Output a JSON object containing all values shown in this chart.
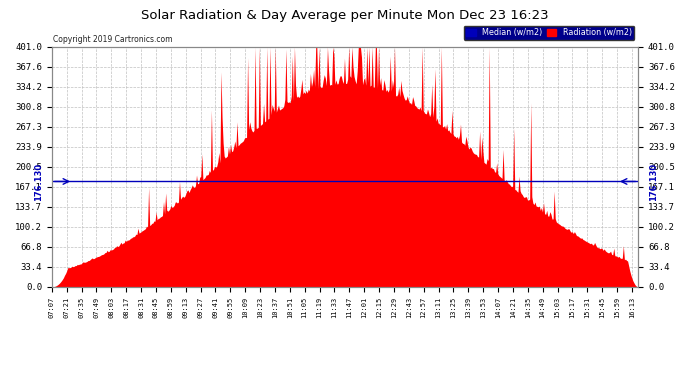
{
  "title": "Solar Radiation & Day Average per Minute Mon Dec 23 16:23",
  "copyright": "Copyright 2019 Cartronics.com",
  "median_value": 176.13,
  "median_label": "176.130",
  "y_ticks": [
    0.0,
    33.4,
    66.8,
    100.2,
    133.7,
    167.1,
    200.5,
    233.9,
    267.3,
    300.8,
    334.2,
    367.6,
    401.0
  ],
  "y_max": 401.0,
  "legend_median_label": "Median (w/m2)",
  "legend_radiation_label": "Radiation (w/m2)",
  "radiation_color": "#FF0000",
  "median_color": "#0000BB",
  "background_color": "#FFFFFF",
  "plot_bg_color": "#FFFFFF",
  "grid_color": "#C0C0C0",
  "title_color": "#000000",
  "copyright_color": "#000000",
  "x_label_rotation": 90,
  "num_points": 552
}
